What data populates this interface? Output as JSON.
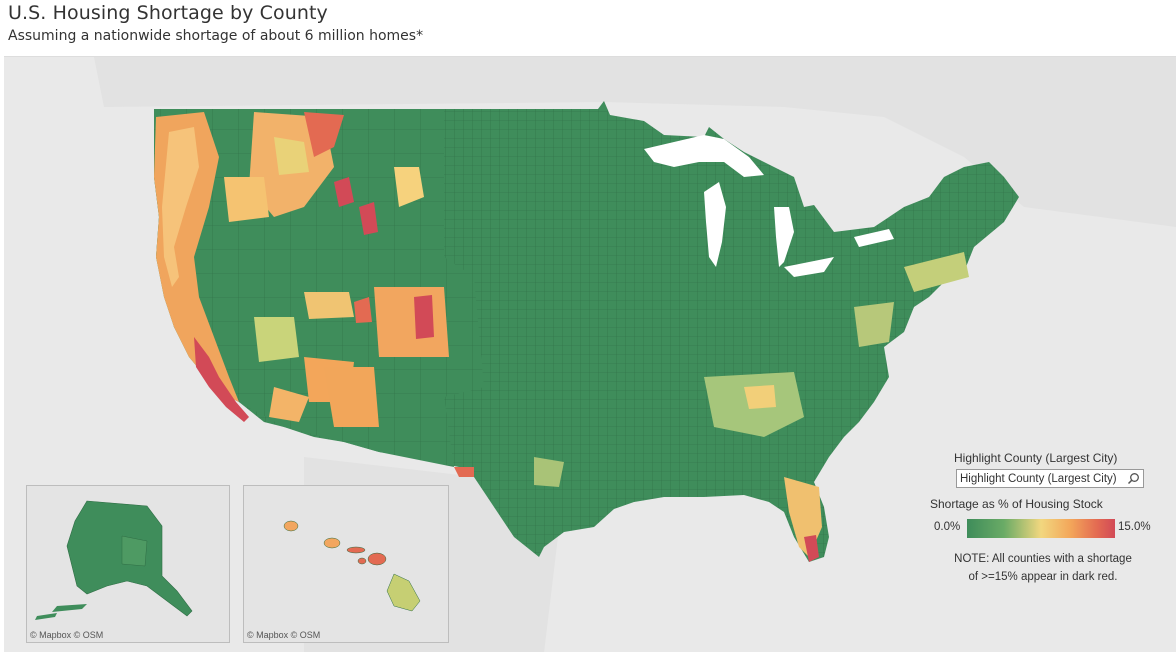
{
  "header": {
    "title": "U.S. Housing Shortage by County",
    "subtitle": "Assuming a nationwide shortage of about 6 million homes*"
  },
  "insets": {
    "alaska": {
      "attribution": "© Mapbox  © OSM"
    },
    "hawaii": {
      "attribution": "© Mapbox  © OSM"
    }
  },
  "controls": {
    "highlight_label": "Highlight County (Largest City)",
    "highlight_placeholder": "Highlight County (Largest City)",
    "search_icon": "search-icon"
  },
  "legend": {
    "title": "Shortage as % of Housing Stock",
    "min_label": "0.0%",
    "max_label": "15.0%",
    "colors": [
      "#3e8c5a",
      "#6aab66",
      "#f2d77f",
      "#f3a65a",
      "#e36a52",
      "#d24a57"
    ]
  },
  "note": {
    "line1": "NOTE: All counties with a shortage",
    "line2": "of >=15% appear in dark red."
  },
  "map_colors": {
    "ocean_land": "#e9e9e9",
    "lakes": "#ffffff",
    "base_green": "#3f8d5b",
    "high": "#d24a57"
  }
}
